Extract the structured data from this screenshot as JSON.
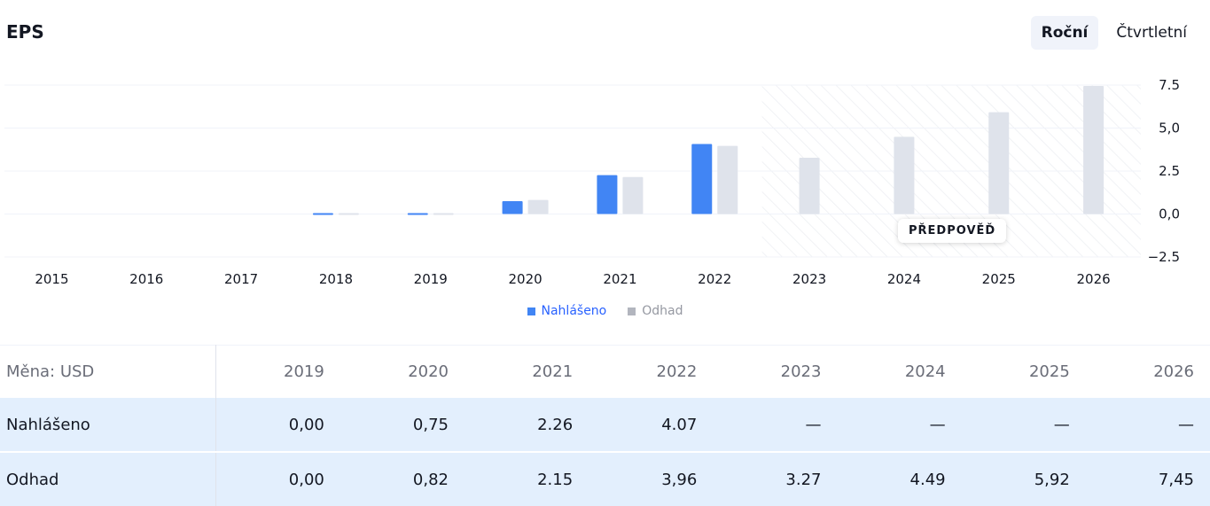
{
  "header": {
    "title": "EPS",
    "periods": [
      {
        "label": "Roční",
        "active": true
      },
      {
        "label": "Čtvrtletní",
        "active": false
      }
    ]
  },
  "chart_data": {
    "type": "bar",
    "categories": [
      "2015",
      "2016",
      "2017",
      "2018",
      "2019",
      "2020",
      "2021",
      "2022",
      "2023",
      "2024",
      "2025",
      "2026"
    ],
    "series": [
      {
        "name": "Nahlášeno",
        "color": "#4185f4",
        "values": [
          null,
          null,
          null,
          -0.05,
          0.0,
          0.75,
          2.26,
          4.07,
          null,
          null,
          null,
          null
        ]
      },
      {
        "name": "Odhad",
        "color": "#dfe3eb",
        "values": [
          null,
          null,
          null,
          -0.05,
          0.0,
          0.82,
          2.15,
          3.96,
          3.27,
          4.49,
          5.92,
          7.45
        ]
      }
    ],
    "yticks": [
      "7.5",
      "5,0",
      "2.5",
      "0,0",
      "−2.5"
    ],
    "ylim": [
      -2.5,
      7.5
    ],
    "forecast_from": "2023",
    "forecast_label": "PŘEDPOVĚĎ",
    "grid": true,
    "legend_position": "bottom-center"
  },
  "legend": {
    "reported_color": "#4185f4",
    "estimate_color": "#b2b5be"
  },
  "table": {
    "currency_label": "Měna: USD",
    "years": [
      "2019",
      "2020",
      "2021",
      "2022",
      "2023",
      "2024",
      "2025",
      "2026"
    ],
    "rows": [
      {
        "label": "Nahlášeno",
        "values": [
          "0,00",
          "0,75",
          "2.26",
          "4.07",
          "—",
          "—",
          "—",
          "—"
        ]
      },
      {
        "label": "Odhad",
        "values": [
          "0,00",
          "0,82",
          "2.15",
          "3,96",
          "3.27",
          "4.49",
          "5,92",
          "7,45"
        ]
      }
    ]
  }
}
